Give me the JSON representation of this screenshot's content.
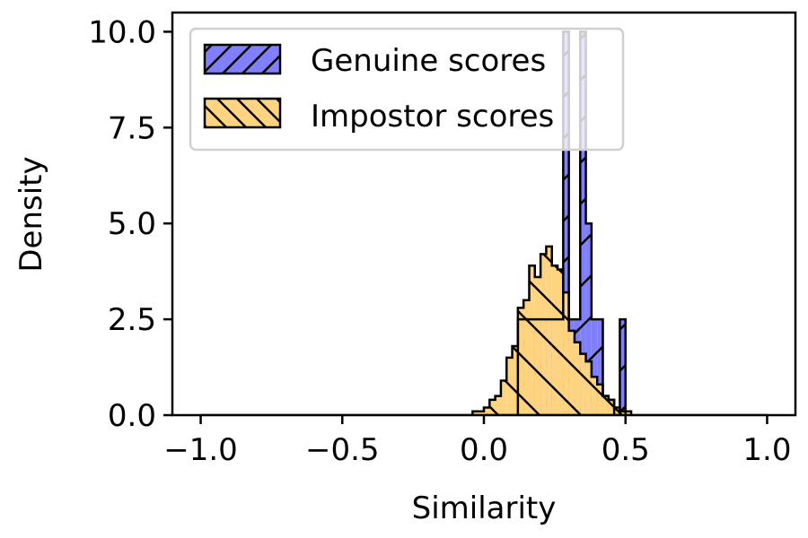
{
  "chart_data": {
    "type": "histogram",
    "title": "",
    "xlabel": "Similarity",
    "ylabel": "Density",
    "xlim": [
      -1.1,
      1.1
    ],
    "ylim": [
      0,
      10.5
    ],
    "x_ticks": [
      -1.0,
      -0.5,
      0.0,
      0.5,
      1.0
    ],
    "x_tick_labels": [
      "−1.0",
      "−0.5",
      "0.0",
      "0.5",
      "1.0"
    ],
    "y_ticks": [
      0.0,
      2.5,
      5.0,
      7.5,
      10.0
    ],
    "y_tick_labels": [
      "0.0",
      "2.5",
      "5.0",
      "7.5",
      "10.0"
    ],
    "grid": false,
    "legend_position": "top-left",
    "series": [
      {
        "name": "Genuine scores",
        "color": "#8080ff",
        "hatch": "forward-diagonal",
        "bins": [
          [
            0.12,
            0.14,
            2.5
          ],
          [
            0.14,
            0.16,
            2.5
          ],
          [
            0.16,
            0.18,
            2.5
          ],
          [
            0.18,
            0.2,
            2.5
          ],
          [
            0.2,
            0.22,
            2.5
          ],
          [
            0.22,
            0.24,
            2.5
          ],
          [
            0.24,
            0.26,
            2.5
          ],
          [
            0.26,
            0.28,
            2.5
          ],
          [
            0.28,
            0.3,
            10.0
          ],
          [
            0.3,
            0.32,
            2.5
          ],
          [
            0.32,
            0.34,
            2.5
          ],
          [
            0.34,
            0.36,
            10.0
          ],
          [
            0.36,
            0.38,
            5.0
          ],
          [
            0.38,
            0.4,
            2.5
          ],
          [
            0.4,
            0.42,
            2.5
          ],
          [
            0.42,
            0.44,
            0.5
          ],
          [
            0.44,
            0.46,
            0.4
          ],
          [
            0.46,
            0.48,
            0.0
          ],
          [
            0.48,
            0.5,
            2.5
          ]
        ]
      },
      {
        "name": "Impostor scores",
        "color": "#ffd480",
        "hatch": "back-diagonal",
        "bins": [
          [
            -0.04,
            -0.02,
            0.1
          ],
          [
            -0.02,
            0.0,
            0.1
          ],
          [
            0.0,
            0.02,
            0.2
          ],
          [
            0.02,
            0.04,
            0.4
          ],
          [
            0.04,
            0.06,
            0.5
          ],
          [
            0.06,
            0.08,
            0.9
          ],
          [
            0.08,
            0.1,
            1.5
          ],
          [
            0.1,
            0.12,
            1.8
          ],
          [
            0.12,
            0.14,
            2.8
          ],
          [
            0.14,
            0.16,
            3.0
          ],
          [
            0.16,
            0.18,
            3.9
          ],
          [
            0.18,
            0.2,
            3.6
          ],
          [
            0.2,
            0.22,
            4.2
          ],
          [
            0.22,
            0.24,
            4.4
          ],
          [
            0.24,
            0.26,
            3.9
          ],
          [
            0.26,
            0.28,
            3.8
          ],
          [
            0.28,
            0.3,
            3.2
          ],
          [
            0.3,
            0.32,
            2.2
          ],
          [
            0.32,
            0.34,
            1.9
          ],
          [
            0.34,
            0.36,
            1.6
          ],
          [
            0.36,
            0.38,
            1.4
          ],
          [
            0.38,
            0.4,
            1.0
          ],
          [
            0.4,
            0.42,
            0.8
          ],
          [
            0.42,
            0.44,
            0.5
          ],
          [
            0.44,
            0.46,
            0.4
          ],
          [
            0.46,
            0.48,
            0.2
          ],
          [
            0.48,
            0.5,
            0.1
          ],
          [
            0.5,
            0.52,
            0.1
          ]
        ]
      }
    ]
  }
}
